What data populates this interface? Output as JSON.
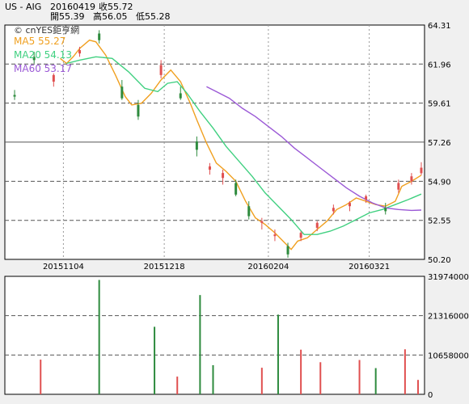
{
  "header": {
    "symbol": "US - AIG",
    "date": "20160419",
    "close_label": "收55.72",
    "open_label": "開55.39",
    "high_label": "高56.05",
    "low_label": "低55.28"
  },
  "watermark": "© cnYES鉅亨網",
  "legend": [
    {
      "label": "MA5 55.27",
      "color": "#f0a020"
    },
    {
      "label": "MA20 54.13",
      "color": "#40d080"
    },
    {
      "label": "MA60 53.17",
      "color": "#9b59d6"
    }
  ],
  "colors": {
    "up": "#e05050",
    "down": "#2e8b3e",
    "ma5": "#f0a020",
    "ma20": "#40d080",
    "ma60": "#9b59d6"
  },
  "chart_data": [
    {
      "type": "candlestick",
      "y_ticks": [
        "64.31",
        "61.96",
        "59.61",
        "57.26",
        "54.90",
        "52.55",
        "50.20"
      ],
      "ylim": [
        50.2,
        64.31
      ],
      "x_tick_labels": [
        {
          "label": "20151104",
          "index": 17
        },
        {
          "label": "20151218",
          "index": 48
        },
        {
          "label": "20160204",
          "index": 80
        },
        {
          "label": "20160321",
          "index": 111
        }
      ],
      "n_bars": 128,
      "candles": [
        {
          "index": 2,
          "open": 60.1,
          "high": 60.4,
          "low": 59.8,
          "close": 60.0
        },
        {
          "index": 8,
          "open": 62.4,
          "high": 62.7,
          "low": 62.0,
          "close": 62.2
        },
        {
          "index": 14,
          "open": 60.9,
          "high": 61.4,
          "low": 60.6,
          "close": 61.3
        },
        {
          "index": 22,
          "open": 62.6,
          "high": 63.0,
          "low": 62.4,
          "close": 62.8
        },
        {
          "index": 28,
          "open": 63.8,
          "high": 64.0,
          "low": 63.2,
          "close": 63.4
        },
        {
          "index": 35,
          "open": 60.6,
          "high": 61.0,
          "low": 59.8,
          "close": 59.9
        },
        {
          "index": 40,
          "open": 59.5,
          "high": 59.8,
          "low": 58.6,
          "close": 58.8
        },
        {
          "index": 47,
          "open": 61.3,
          "high": 62.2,
          "low": 61.1,
          "close": 61.9
        },
        {
          "index": 53,
          "open": 60.2,
          "high": 60.6,
          "low": 59.8,
          "close": 59.9
        },
        {
          "index": 58,
          "open": 57.3,
          "high": 57.6,
          "low": 56.4,
          "close": 56.8
        },
        {
          "index": 62,
          "open": 55.6,
          "high": 56.0,
          "low": 55.3,
          "close": 55.8
        },
        {
          "index": 66,
          "open": 55.1,
          "high": 55.6,
          "low": 54.7,
          "close": 55.4
        },
        {
          "index": 70,
          "open": 54.8,
          "high": 55.0,
          "low": 54.0,
          "close": 54.1
        },
        {
          "index": 74,
          "open": 53.4,
          "high": 53.7,
          "low": 52.6,
          "close": 52.8
        },
        {
          "index": 78,
          "open": 52.4,
          "high": 52.7,
          "low": 52.0,
          "close": 52.5
        },
        {
          "index": 82,
          "open": 51.6,
          "high": 52.0,
          "low": 51.3,
          "close": 51.7
        },
        {
          "index": 86,
          "open": 51.0,
          "high": 51.2,
          "low": 50.3,
          "close": 50.5
        },
        {
          "index": 90,
          "open": 51.5,
          "high": 51.9,
          "low": 51.3,
          "close": 51.8
        },
        {
          "index": 95,
          "open": 52.1,
          "high": 52.5,
          "low": 51.9,
          "close": 52.4
        },
        {
          "index": 100,
          "open": 53.1,
          "high": 53.5,
          "low": 52.9,
          "close": 53.3
        },
        {
          "index": 105,
          "open": 53.4,
          "high": 53.7,
          "low": 53.1,
          "close": 53.6
        },
        {
          "index": 110,
          "open": 53.8,
          "high": 54.1,
          "low": 53.6,
          "close": 54.0
        },
        {
          "index": 116,
          "open": 53.3,
          "high": 53.6,
          "low": 52.9,
          "close": 53.1
        },
        {
          "index": 120,
          "open": 54.4,
          "high": 55.0,
          "low": 54.2,
          "close": 54.8
        },
        {
          "index": 124,
          "open": 54.9,
          "high": 55.4,
          "low": 54.7,
          "close": 55.2
        },
        {
          "index": 127,
          "open": 55.39,
          "high": 56.05,
          "low": 55.28,
          "close": 55.72
        }
      ],
      "ma_series": [
        {
          "name": "MA5",
          "color": "#f0a020",
          "points": [
            [
              16,
              62.3
            ],
            [
              18,
              62.0
            ],
            [
              20,
              62.4
            ],
            [
              22,
              62.9
            ],
            [
              25,
              63.4
            ],
            [
              27,
              63.3
            ],
            [
              30,
              62.5
            ],
            [
              33,
              61.3
            ],
            [
              36,
              60.0
            ],
            [
              38,
              59.5
            ],
            [
              41,
              59.6
            ],
            [
              44,
              60.2
            ],
            [
              47,
              61.0
            ],
            [
              50,
              61.6
            ],
            [
              53,
              60.9
            ],
            [
              56,
              59.6
            ],
            [
              58,
              58.6
            ],
            [
              61,
              57.2
            ],
            [
              64,
              56.0
            ],
            [
              67,
              55.5
            ],
            [
              70,
              54.9
            ],
            [
              73,
              53.7
            ],
            [
              76,
              52.7
            ],
            [
              79,
              52.3
            ],
            [
              82,
              51.8
            ],
            [
              85,
              51.2
            ],
            [
              87,
              50.8
            ],
            [
              89,
              51.3
            ],
            [
              92,
              51.5
            ],
            [
              95,
              52.0
            ],
            [
              98,
              52.5
            ],
            [
              101,
              53.2
            ],
            [
              104,
              53.5
            ],
            [
              107,
              53.9
            ],
            [
              110,
              53.7
            ],
            [
              113,
              53.5
            ],
            [
              116,
              53.4
            ],
            [
              119,
              53.7
            ],
            [
              121,
              54.6
            ],
            [
              124,
              54.9
            ],
            [
              127,
              55.27
            ]
          ]
        },
        {
          "name": "MA20",
          "color": "#40d080",
          "points": [
            [
              18,
              62.0
            ],
            [
              22,
              62.2
            ],
            [
              27,
              62.4
            ],
            [
              32,
              62.3
            ],
            [
              37,
              61.5
            ],
            [
              42,
              60.5
            ],
            [
              46,
              60.3
            ],
            [
              49,
              60.8
            ],
            [
              52,
              60.9
            ],
            [
              55,
              60.2
            ],
            [
              59,
              59.1
            ],
            [
              63,
              58.1
            ],
            [
              67,
              57.0
            ],
            [
              71,
              56.1
            ],
            [
              75,
              55.2
            ],
            [
              79,
              54.2
            ],
            [
              83,
              53.4
            ],
            [
              87,
              52.6
            ],
            [
              91,
              51.7
            ],
            [
              95,
              51.7
            ],
            [
              99,
              51.9
            ],
            [
              103,
              52.2
            ],
            [
              107,
              52.6
            ],
            [
              111,
              53.0
            ],
            [
              115,
              53.2
            ],
            [
              119,
              53.5
            ],
            [
              123,
              53.8
            ],
            [
              127,
              54.13
            ]
          ]
        },
        {
          "name": "MA60",
          "color": "#9b59d6",
          "points": [
            [
              61,
              60.6
            ],
            [
              64,
              60.3
            ],
            [
              68,
              59.9
            ],
            [
              72,
              59.3
            ],
            [
              76,
              58.8
            ],
            [
              80,
              58.2
            ],
            [
              84,
              57.6
            ],
            [
              88,
              56.9
            ],
            [
              92,
              56.3
            ],
            [
              96,
              55.7
            ],
            [
              100,
              55.1
            ],
            [
              104,
              54.5
            ],
            [
              108,
              54.0
            ],
            [
              112,
              53.6
            ],
            [
              116,
              53.3
            ],
            [
              120,
              53.2
            ],
            [
              124,
              53.15
            ],
            [
              127,
              53.17
            ]
          ]
        }
      ]
    },
    {
      "type": "bar",
      "y_ticks": [
        "31974000",
        "21316000",
        "10658000",
        "0"
      ],
      "ylim": [
        0,
        31974000
      ],
      "volumes": [
        {
          "index": 10,
          "value": 9400000
        },
        {
          "index": 28,
          "value": 31000000
        },
        {
          "index": 45,
          "value": 18300000
        },
        {
          "index": 52,
          "value": 4800000
        },
        {
          "index": 59,
          "value": 26900000
        },
        {
          "index": 63,
          "value": 7900000
        },
        {
          "index": 78,
          "value": 7200000
        },
        {
          "index": 83,
          "value": 21600000
        },
        {
          "index": 90,
          "value": 12100000
        },
        {
          "index": 96,
          "value": 8700000
        },
        {
          "index": 108,
          "value": 9300000
        },
        {
          "index": 113,
          "value": 7100000
        },
        {
          "index": 122,
          "value": 12200000
        },
        {
          "index": 126,
          "value": 3900000
        }
      ]
    }
  ]
}
